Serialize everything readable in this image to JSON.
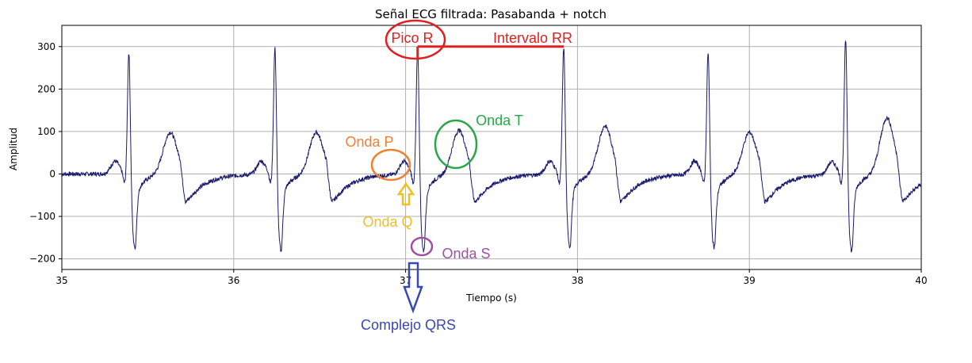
{
  "chart_data": {
    "type": "line",
    "title": "Señal ECG filtrada: Pasabanda + notch",
    "xlabel": "Tiempo (s)",
    "ylabel": "Amplitud",
    "xlim": [
      35,
      40
    ],
    "ylim": [
      -225,
      350
    ],
    "xticks": [
      35,
      36,
      37,
      38,
      39,
      40
    ],
    "yticks": [
      -200,
      -100,
      0,
      100,
      200,
      300
    ],
    "grid": true,
    "line_color": "#1a1a6e",
    "beats": [
      {
        "r_time": 35.39,
        "r_amp": 293,
        "s_amp": -162,
        "t_amp": 98
      },
      {
        "r_time": 36.24,
        "r_amp": 303,
        "s_amp": -168,
        "t_amp": 98
      },
      {
        "r_time": 37.07,
        "r_amp": 299,
        "s_amp": -170,
        "t_amp": 103
      },
      {
        "r_time": 37.92,
        "r_amp": 303,
        "s_amp": -158,
        "t_amp": 113
      },
      {
        "r_time": 38.76,
        "r_amp": 292,
        "s_amp": -160,
        "t_amp": 98
      },
      {
        "r_time": 39.56,
        "r_amp": 322,
        "s_amp": -170,
        "t_amp": 132
      }
    ],
    "annotations": [
      {
        "label": "Pico R",
        "color": "#e02020",
        "shape": "ellipse"
      },
      {
        "label": "Intervalo RR",
        "color": "#e02020",
        "shape": "line",
        "from_x": 37.07,
        "to_x": 37.92,
        "y": 300
      },
      {
        "label": "Onda T",
        "color": "#2aa64a",
        "shape": "ellipse"
      },
      {
        "label": "Onda P",
        "color": "#ee8030",
        "shape": "ellipse"
      },
      {
        "label": "Onda Q",
        "color": "#f0c020",
        "shape": "arrow-up"
      },
      {
        "label": "Onda S",
        "color": "#a050a0",
        "shape": "ellipse"
      },
      {
        "label": "Complejo QRS",
        "color": "#3848b0",
        "shape": "arrow-down"
      }
    ]
  }
}
